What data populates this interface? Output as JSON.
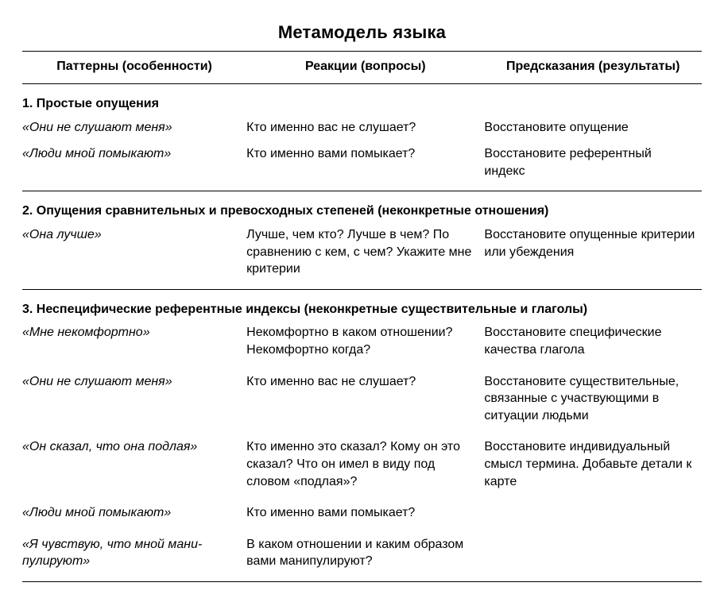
{
  "title": "Метамодель языка",
  "columns": {
    "col1": "Паттерны (особенности)",
    "col2": "Реакции (вопросы)",
    "col3": "Предсказания (результаты)"
  },
  "sections": {
    "s1": {
      "heading": "1. Простые опущения",
      "rows": {
        "r1": {
          "pattern": "«Они не слушают меня»",
          "reaction": "Кто именно вас не слушает?",
          "prediction": "Восстановите опущение"
        },
        "r2": {
          "pattern": "«Люди мной помыкают»",
          "reaction": "Кто именно вами помыкает?",
          "prediction": "Восстановите референтный индекс"
        }
      }
    },
    "s2": {
      "heading": "2. Опущения сравнительных и превосходных степеней (неконкретные отношения)",
      "rows": {
        "r1": {
          "pattern": "«Она лучше»",
          "reaction": "Лучше, чем кто? Лучше в чем? По сравнению с кем, с чем? Укажите мне критерии",
          "prediction": "Восстановите опущенные критерии или убеждения"
        }
      }
    },
    "s3": {
      "heading": "3. Неспецифические референтные индексы (неконкретные существительные и глаголы)",
      "rows": {
        "r1": {
          "pattern": "«Мне некомфортно»",
          "reaction": "Некомфортно в каком отноше­нии? Некомфортно когда?",
          "prediction": "Восстановите специфические качества глагола"
        },
        "r2": {
          "pattern": "«Они не слушают меня»",
          "reaction": "Кто именно вас не слушает?",
          "prediction": "Восстановите существитель­ные, связанные с участвующи­ми в ситуации людьми"
        },
        "r3": {
          "pattern": "«Он сказал, что она подлая»",
          "reaction": "Кто именно это сказал? Кому он это сказал? Что он имел в виду под словом «подлая»?",
          "prediction": "Восстановите индивидуаль­ный смысл термина. Добавьте детали к карте"
        },
        "r4": {
          "pattern": "«Люди мной помыкают»",
          "reaction": "Кто именно вами помыкает?",
          "prediction": ""
        },
        "r5": {
          "pattern": "«Я чувствую, что мной мани­пулируют»",
          "reaction": "В каком отношении и каким образом вами манипулируют?",
          "prediction": ""
        }
      }
    }
  }
}
